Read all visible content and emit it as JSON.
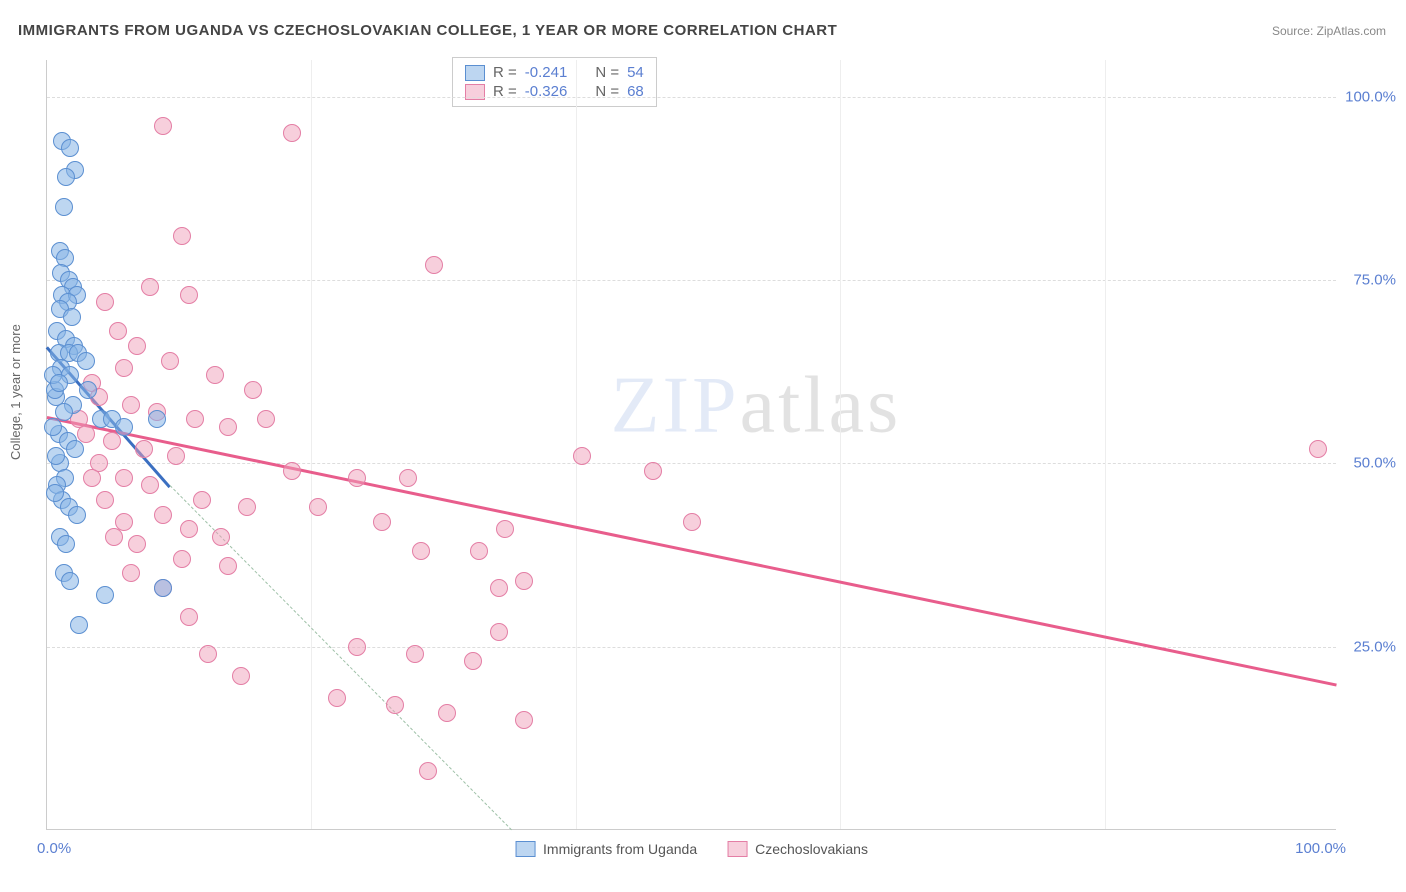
{
  "title": "IMMIGRANTS FROM UGANDA VS CZECHOSLOVAKIAN COLLEGE, 1 YEAR OR MORE CORRELATION CHART",
  "source_label": "Source: ",
  "source_name": "ZipAtlas.com",
  "ylabel": "College, 1 year or more",
  "xtick_min": "0.0%",
  "xtick_max": "100.0%",
  "watermark_a": "ZIP",
  "watermark_b": "atlas",
  "chart": {
    "type": "scatter",
    "xlim": [
      0,
      100
    ],
    "ylim": [
      0,
      105
    ],
    "y_ticks": [
      25,
      50,
      75,
      100
    ],
    "y_labels": [
      "25.0%",
      "50.0%",
      "75.0%",
      "100.0%"
    ],
    "x_gridlines": [
      20.5,
      41,
      61.5,
      82
    ],
    "background_color": "#ffffff",
    "grid_color": "#dddddd",
    "series": [
      {
        "key": "uganda",
        "label": "Immigrants from Uganda",
        "color_fill": "rgba(135,180,230,0.55)",
        "color_stroke": "#5b8fd1",
        "class": "blue",
        "R": "-0.241",
        "N": "54",
        "regression": {
          "x1": 0,
          "y1": 66,
          "x2": 9.5,
          "y2": 47,
          "extend_dashed_to_x": 36,
          "extend_dashed_to_y": 0
        },
        "points": [
          [
            1.2,
            94
          ],
          [
            1.8,
            93
          ],
          [
            2.2,
            90
          ],
          [
            1.5,
            89
          ],
          [
            1.3,
            85
          ],
          [
            1.0,
            79
          ],
          [
            1.4,
            78
          ],
          [
            1.1,
            76
          ],
          [
            1.7,
            75
          ],
          [
            2.0,
            74
          ],
          [
            1.2,
            73
          ],
          [
            2.3,
            73
          ],
          [
            1.6,
            72
          ],
          [
            1.0,
            71
          ],
          [
            1.9,
            70
          ],
          [
            0.8,
            68
          ],
          [
            1.5,
            67
          ],
          [
            2.1,
            66
          ],
          [
            0.9,
            65
          ],
          [
            1.7,
            65
          ],
          [
            2.4,
            65
          ],
          [
            1.1,
            63
          ],
          [
            1.8,
            62
          ],
          [
            3.2,
            60
          ],
          [
            0.7,
            59
          ],
          [
            2.0,
            58
          ],
          [
            1.3,
            57
          ],
          [
            4.2,
            56
          ],
          [
            5.0,
            56
          ],
          [
            8.5,
            56
          ],
          [
            0.9,
            54
          ],
          [
            1.6,
            53
          ],
          [
            2.2,
            52
          ],
          [
            1.0,
            50
          ],
          [
            1.4,
            48
          ],
          [
            0.8,
            47
          ],
          [
            1.2,
            45
          ],
          [
            1.7,
            44
          ],
          [
            2.3,
            43
          ],
          [
            1.0,
            40
          ],
          [
            1.5,
            39
          ],
          [
            1.3,
            35
          ],
          [
            1.8,
            34
          ],
          [
            9.0,
            33
          ],
          [
            2.5,
            28
          ],
          [
            4.5,
            32
          ],
          [
            6.0,
            55
          ],
          [
            3.0,
            64
          ],
          [
            0.6,
            60
          ],
          [
            0.5,
            55
          ],
          [
            0.7,
            51
          ],
          [
            0.6,
            46
          ],
          [
            0.5,
            62
          ],
          [
            0.9,
            61
          ]
        ]
      },
      {
        "key": "czech",
        "label": "Czechoslovakians",
        "color_fill": "rgba(240,160,185,0.5)",
        "color_stroke": "#e47ea5",
        "class": "pink",
        "R": "-0.326",
        "N": "68",
        "regression": {
          "x1": 0,
          "y1": 56.5,
          "x2": 100,
          "y2": 20
        },
        "points": [
          [
            9.0,
            96
          ],
          [
            19.0,
            95
          ],
          [
            10.5,
            81
          ],
          [
            8.0,
            74
          ],
          [
            11.0,
            73
          ],
          [
            4.5,
            72
          ],
          [
            30.0,
            77
          ],
          [
            5.5,
            68
          ],
          [
            7.0,
            66
          ],
          [
            9.5,
            64
          ],
          [
            6.0,
            63
          ],
          [
            13.0,
            62
          ],
          [
            16.0,
            60
          ],
          [
            3.5,
            61
          ],
          [
            4.0,
            59
          ],
          [
            6.5,
            58
          ],
          [
            8.5,
            57
          ],
          [
            11.5,
            56
          ],
          [
            14.0,
            55
          ],
          [
            2.5,
            56
          ],
          [
            3.0,
            54
          ],
          [
            5.0,
            53
          ],
          [
            7.5,
            52
          ],
          [
            10.0,
            51
          ],
          [
            17.0,
            56
          ],
          [
            19.0,
            49
          ],
          [
            24.0,
            48
          ],
          [
            28.0,
            48
          ],
          [
            4.0,
            50
          ],
          [
            6.0,
            48
          ],
          [
            8.0,
            47
          ],
          [
            12.0,
            45
          ],
          [
            15.5,
            44
          ],
          [
            9.0,
            43
          ],
          [
            11.0,
            41
          ],
          [
            13.5,
            40
          ],
          [
            21.0,
            44
          ],
          [
            26.0,
            42
          ],
          [
            7.0,
            39
          ],
          [
            10.5,
            37
          ],
          [
            14.0,
            36
          ],
          [
            29.0,
            38
          ],
          [
            33.5,
            38
          ],
          [
            6.5,
            35
          ],
          [
            9.0,
            33
          ],
          [
            35.5,
            41
          ],
          [
            41.5,
            51
          ],
          [
            47.0,
            49
          ],
          [
            37.0,
            34
          ],
          [
            35.0,
            33
          ],
          [
            50.0,
            42
          ],
          [
            24.0,
            25
          ],
          [
            28.5,
            24
          ],
          [
            33.0,
            23
          ],
          [
            11.0,
            29
          ],
          [
            35.0,
            27
          ],
          [
            22.5,
            18
          ],
          [
            27.0,
            17
          ],
          [
            31.0,
            16
          ],
          [
            37.0,
            15
          ],
          [
            12.5,
            24
          ],
          [
            15.0,
            21
          ],
          [
            29.5,
            8
          ],
          [
            98.5,
            52
          ],
          [
            4.5,
            45
          ],
          [
            6.0,
            42
          ],
          [
            3.5,
            48
          ],
          [
            5.2,
            40
          ]
        ]
      }
    ],
    "legend_top": [
      {
        "class": "blue",
        "R_label": "R =",
        "R": "-0.241",
        "N_label": "N =",
        "N": "54"
      },
      {
        "class": "pink",
        "R_label": "R =",
        "R": "-0.326",
        "N_label": "N =",
        "N": "68"
      }
    ]
  }
}
